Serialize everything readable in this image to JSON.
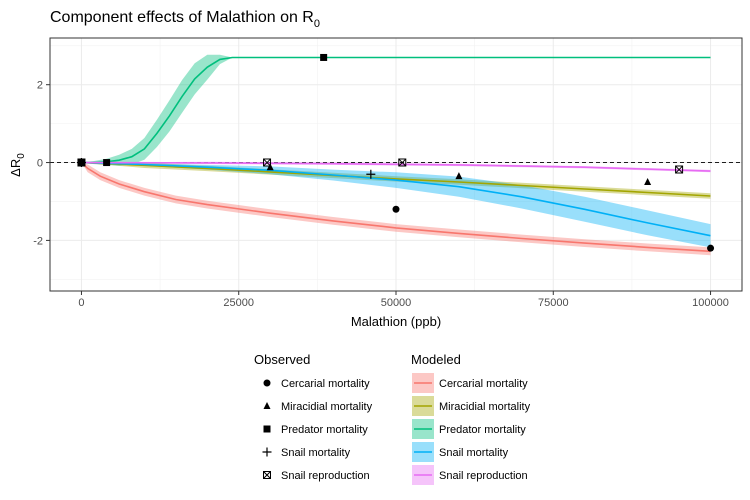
{
  "chart_data": {
    "type": "line",
    "title": "Component effects of Malathion on R",
    "title_subscript": "0",
    "xlabel": "Malathion (ppb)",
    "ylabel_main": "ΔR",
    "ylabel_subscript": "0",
    "xlim": [
      -5000,
      105000
    ],
    "ylim": [
      -3.3,
      3.2
    ],
    "x_ticks": [
      0,
      25000,
      50000,
      75000,
      100000
    ],
    "x_tick_labels": [
      "0",
      "25000",
      "50000",
      "75000",
      "100000"
    ],
    "y_ticks": [
      -2,
      0,
      2
    ],
    "y_tick_labels": [
      "-2",
      "0",
      "2"
    ],
    "reference_line_y": 0,
    "grid": true,
    "legend_position": "bottom",
    "legend": {
      "observed_title": "Observed",
      "modeled_title": "Modeled"
    },
    "series": [
      {
        "name": "Cercarial mortality",
        "color": "#F8766D",
        "marker": "circle",
        "x": [
          0,
          1000,
          3000,
          6000,
          10000,
          15000,
          20000,
          30000,
          40000,
          50000,
          60000,
          70000,
          80000,
          90000,
          100000
        ],
        "y": [
          0,
          -0.15,
          -0.35,
          -0.55,
          -0.75,
          -0.95,
          -1.08,
          -1.3,
          -1.5,
          -1.68,
          -1.82,
          -1.95,
          -2.07,
          -2.18,
          -2.28
        ],
        "band_half_width": 0.1,
        "observed": [
          {
            "x": 0,
            "y": 0
          },
          {
            "x": 50000,
            "y": -1.2
          },
          {
            "x": 100000,
            "y": -2.2
          }
        ]
      },
      {
        "name": "Miracidial mortality",
        "color": "#A3A500",
        "marker": "triangle",
        "x": [
          0,
          10000,
          20000,
          30000,
          40000,
          50000,
          60000,
          70000,
          80000,
          90000,
          100000
        ],
        "y": [
          0,
          -0.07,
          -0.15,
          -0.24,
          -0.33,
          -0.42,
          -0.5,
          -0.59,
          -0.68,
          -0.77,
          -0.86
        ],
        "band_half_width": 0.07,
        "observed": [
          {
            "x": 0,
            "y": 0
          },
          {
            "x": 30000,
            "y": -0.12
          },
          {
            "x": 60000,
            "y": -0.35
          },
          {
            "x": 90000,
            "y": -0.5
          }
        ]
      },
      {
        "name": "Predator mortality",
        "color": "#00BF7D",
        "marker": "square",
        "x": [
          0,
          2000,
          4000,
          6000,
          8000,
          10000,
          12000,
          14000,
          16000,
          18000,
          20000,
          22000,
          24000,
          30000,
          40000,
          50000,
          60000,
          70000,
          80000,
          90000,
          100000
        ],
        "y": [
          0,
          0,
          0.02,
          0.06,
          0.15,
          0.35,
          0.75,
          1.2,
          1.7,
          2.15,
          2.45,
          2.65,
          2.7,
          2.7,
          2.7,
          2.7,
          2.7,
          2.7,
          2.7,
          2.7,
          2.7
        ],
        "band_half_width": [
          0,
          0.04,
          0.08,
          0.14,
          0.2,
          0.28,
          0.35,
          0.4,
          0.42,
          0.4,
          0.32,
          0.12,
          0,
          0,
          0,
          0,
          0,
          0,
          0,
          0,
          0
        ],
        "observed": [
          {
            "x": 0,
            "y": 0
          },
          {
            "x": 4000,
            "y": 0
          },
          {
            "x": 38500,
            "y": 2.7
          }
        ]
      },
      {
        "name": "Snail mortality",
        "color": "#00B0F6",
        "marker": "plus",
        "x": [
          0,
          10000,
          20000,
          30000,
          40000,
          50000,
          60000,
          70000,
          80000,
          90000,
          100000
        ],
        "y": [
          0,
          -0.05,
          -0.12,
          -0.2,
          -0.32,
          -0.45,
          -0.62,
          -0.88,
          -1.2,
          -1.55,
          -1.88
        ],
        "band_half_width": [
          0,
          0.03,
          0.06,
          0.1,
          0.14,
          0.2,
          0.26,
          0.3,
          0.32,
          0.32,
          0.3
        ],
        "observed": [
          {
            "x": 0,
            "y": 0
          },
          {
            "x": 46000,
            "y": -0.3
          }
        ]
      },
      {
        "name": "Snail reproduction",
        "color": "#E76BF3",
        "marker": "boxx",
        "x": [
          0,
          20000,
          40000,
          60000,
          80000,
          100000
        ],
        "y": [
          0,
          -0.01,
          -0.03,
          -0.06,
          -0.12,
          -0.22
        ],
        "band_half_width": 0.03,
        "observed": [
          {
            "x": 0,
            "y": 0
          },
          {
            "x": 29500,
            "y": 0
          },
          {
            "x": 51000,
            "y": 0
          },
          {
            "x": 95000,
            "y": -0.18
          }
        ]
      }
    ]
  }
}
